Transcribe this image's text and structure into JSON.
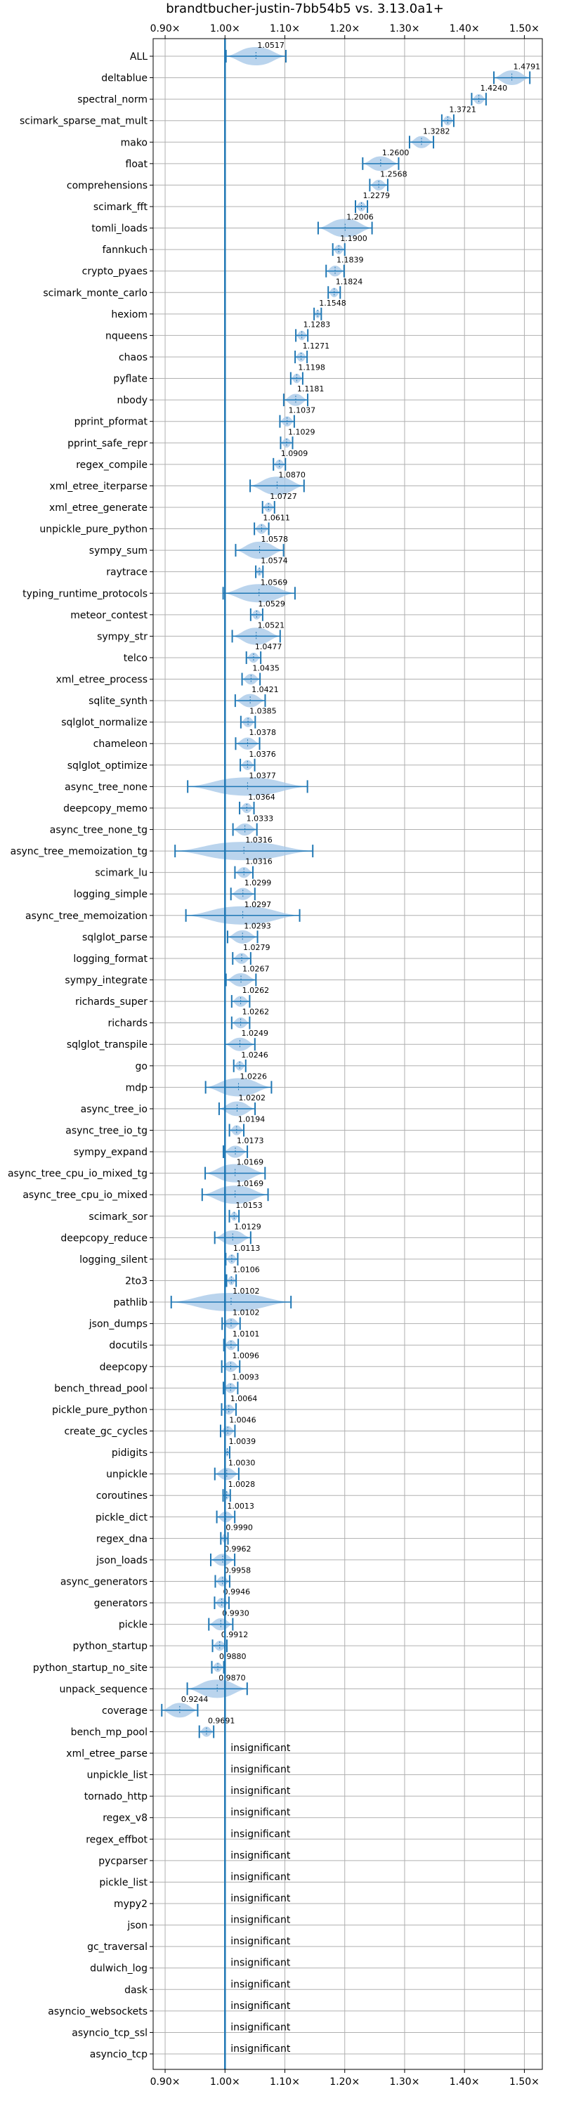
{
  "chart_data": {
    "type": "violin",
    "title": "brandtbucher-justin-7bb54b5 vs. 3.13.0a1+",
    "xlabel": "",
    "ylabel": "",
    "xlim": [
      0.88,
      1.53
    ],
    "xticks": [
      0.9,
      1.0,
      1.1,
      1.2,
      1.3,
      1.4,
      1.5
    ],
    "xtick_labels": [
      "0.90×",
      "1.00×",
      "1.10×",
      "1.20×",
      "1.30×",
      "1.40×",
      "1.50×"
    ],
    "reference_line": 1.0,
    "grid": true,
    "insignificant_text": "insignificant",
    "benchmarks": [
      {
        "name": "ALL",
        "value": 1.0517,
        "label": "1.0517",
        "spread": 0.05
      },
      {
        "name": "deltablue",
        "value": 1.4791,
        "label": "1.4791",
        "spread": 0.03
      },
      {
        "name": "spectral_norm",
        "value": 1.424,
        "label": "1.4240",
        "spread": 0.012
      },
      {
        "name": "scimark_sparse_mat_mult",
        "value": 1.3721,
        "label": "1.3721",
        "spread": 0.01
      },
      {
        "name": "mako",
        "value": 1.3282,
        "label": "1.3282",
        "spread": 0.02
      },
      {
        "name": "float",
        "value": 1.26,
        "label": "1.2600",
        "spread": 0.03
      },
      {
        "name": "comprehensions",
        "value": 1.2568,
        "label": "1.2568",
        "spread": 0.015
      },
      {
        "name": "scimark_fft",
        "value": 1.2279,
        "label": "1.2279",
        "spread": 0.01
      },
      {
        "name": "tomli_loads",
        "value": 1.2006,
        "label": "1.2006",
        "spread": 0.045
      },
      {
        "name": "fannkuch",
        "value": 1.19,
        "label": "1.1900",
        "spread": 0.01
      },
      {
        "name": "crypto_pyaes",
        "value": 1.1839,
        "label": "1.1839",
        "spread": 0.015
      },
      {
        "name": "scimark_monte_carlo",
        "value": 1.1824,
        "label": "1.1824",
        "spread": 0.01
      },
      {
        "name": "hexiom",
        "value": 1.1548,
        "label": "1.1548",
        "spread": 0.006
      },
      {
        "name": "nqueens",
        "value": 1.1283,
        "label": "1.1283",
        "spread": 0.01
      },
      {
        "name": "chaos",
        "value": 1.1271,
        "label": "1.1271",
        "spread": 0.01
      },
      {
        "name": "pyflate",
        "value": 1.1198,
        "label": "1.1198",
        "spread": 0.01
      },
      {
        "name": "nbody",
        "value": 1.1181,
        "label": "1.1181",
        "spread": 0.02
      },
      {
        "name": "pprint_pformat",
        "value": 1.1037,
        "label": "1.1037",
        "spread": 0.012
      },
      {
        "name": "pprint_safe_repr",
        "value": 1.1029,
        "label": "1.1029",
        "spread": 0.01
      },
      {
        "name": "regex_compile",
        "value": 1.0909,
        "label": "1.0909",
        "spread": 0.01
      },
      {
        "name": "xml_etree_iterparse",
        "value": 1.087,
        "label": "1.0870",
        "spread": 0.045
      },
      {
        "name": "xml_etree_generate",
        "value": 1.0727,
        "label": "1.0727",
        "spread": 0.01
      },
      {
        "name": "unpickle_pure_python",
        "value": 1.0611,
        "label": "1.0611",
        "spread": 0.012
      },
      {
        "name": "sympy_sum",
        "value": 1.0578,
        "label": "1.0578",
        "spread": 0.04
      },
      {
        "name": "raytrace",
        "value": 1.0574,
        "label": "1.0574",
        "spread": 0.006
      },
      {
        "name": "typing_runtime_protocols",
        "value": 1.0569,
        "label": "1.0569",
        "spread": 0.06
      },
      {
        "name": "meteor_contest",
        "value": 1.0529,
        "label": "1.0529",
        "spread": 0.01
      },
      {
        "name": "sympy_str",
        "value": 1.0521,
        "label": "1.0521",
        "spread": 0.04
      },
      {
        "name": "telco",
        "value": 1.0477,
        "label": "1.0477",
        "spread": 0.012
      },
      {
        "name": "xml_etree_process",
        "value": 1.0435,
        "label": "1.0435",
        "spread": 0.015
      },
      {
        "name": "sqlite_synth",
        "value": 1.0421,
        "label": "1.0421",
        "spread": 0.025
      },
      {
        "name": "sqlglot_normalize",
        "value": 1.0385,
        "label": "1.0385",
        "spread": 0.012
      },
      {
        "name": "chameleon",
        "value": 1.0378,
        "label": "1.0378",
        "spread": 0.02
      },
      {
        "name": "sqlglot_optimize",
        "value": 1.0376,
        "label": "1.0376",
        "spread": 0.012
      },
      {
        "name": "async_tree_none",
        "value": 1.0377,
        "label": "1.0377",
        "spread": 0.1
      },
      {
        "name": "deepcopy_memo",
        "value": 1.0364,
        "label": "1.0364",
        "spread": 0.012
      },
      {
        "name": "async_tree_none_tg",
        "value": 1.0333,
        "label": "1.0333",
        "spread": 0.02
      },
      {
        "name": "async_tree_memoization_tg",
        "value": 1.0316,
        "label": "1.0316",
        "spread": 0.115
      },
      {
        "name": "scimark_lu",
        "value": 1.0316,
        "label": "1.0316",
        "spread": 0.015
      },
      {
        "name": "logging_simple",
        "value": 1.0299,
        "label": "1.0299",
        "spread": 0.02
      },
      {
        "name": "async_tree_memoization",
        "value": 1.0297,
        "label": "1.0297",
        "spread": 0.095
      },
      {
        "name": "sqlglot_parse",
        "value": 1.0293,
        "label": "1.0293",
        "spread": 0.025
      },
      {
        "name": "logging_format",
        "value": 1.0279,
        "label": "1.0279",
        "spread": 0.015
      },
      {
        "name": "sympy_integrate",
        "value": 1.0267,
        "label": "1.0267",
        "spread": 0.025
      },
      {
        "name": "richards_super",
        "value": 1.0262,
        "label": "1.0262",
        "spread": 0.015
      },
      {
        "name": "richards",
        "value": 1.0262,
        "label": "1.0262",
        "spread": 0.015
      },
      {
        "name": "sqlglot_transpile",
        "value": 1.0249,
        "label": "1.0249",
        "spread": 0.025
      },
      {
        "name": "go",
        "value": 1.0246,
        "label": "1.0246",
        "spread": 0.01
      },
      {
        "name": "mdp",
        "value": 1.0226,
        "label": "1.0226",
        "spread": 0.055
      },
      {
        "name": "async_tree_io",
        "value": 1.0202,
        "label": "1.0202",
        "spread": 0.03
      },
      {
        "name": "async_tree_io_tg",
        "value": 1.0194,
        "label": "1.0194",
        "spread": 0.012
      },
      {
        "name": "sympy_expand",
        "value": 1.0173,
        "label": "1.0173",
        "spread": 0.02
      },
      {
        "name": "async_tree_cpu_io_mixed_tg",
        "value": 1.0169,
        "label": "1.0169",
        "spread": 0.05
      },
      {
        "name": "async_tree_cpu_io_mixed",
        "value": 1.0169,
        "label": "1.0169",
        "spread": 0.055
      },
      {
        "name": "scimark_sor",
        "value": 1.0153,
        "label": "1.0153",
        "spread": 0.008
      },
      {
        "name": "deepcopy_reduce",
        "value": 1.0129,
        "label": "1.0129",
        "spread": 0.03
      },
      {
        "name": "logging_silent",
        "value": 1.0113,
        "label": "1.0113",
        "spread": 0.01
      },
      {
        "name": "2to3",
        "value": 1.0106,
        "label": "1.0106",
        "spread": 0.008
      },
      {
        "name": "pathlib",
        "value": 1.0102,
        "label": "1.0102",
        "spread": 0.1
      },
      {
        "name": "json_dumps",
        "value": 1.0102,
        "label": "1.0102",
        "spread": 0.015
      },
      {
        "name": "docutils",
        "value": 1.0101,
        "label": "1.0101",
        "spread": 0.012
      },
      {
        "name": "deepcopy",
        "value": 1.0096,
        "label": "1.0096",
        "spread": 0.015
      },
      {
        "name": "bench_thread_pool",
        "value": 1.0093,
        "label": "1.0093",
        "spread": 0.012
      },
      {
        "name": "pickle_pure_python",
        "value": 1.0064,
        "label": "1.0064",
        "spread": 0.012
      },
      {
        "name": "create_gc_cycles",
        "value": 1.0046,
        "label": "1.0046",
        "spread": 0.012
      },
      {
        "name": "pidigits",
        "value": 1.0039,
        "label": "1.0039",
        "spread": 0.004
      },
      {
        "name": "unpickle",
        "value": 1.003,
        "label": "1.0030",
        "spread": 0.02
      },
      {
        "name": "coroutines",
        "value": 1.0028,
        "label": "1.0028",
        "spread": 0.006
      },
      {
        "name": "pickle_dict",
        "value": 1.0013,
        "label": "1.0013",
        "spread": 0.015
      },
      {
        "name": "regex_dna",
        "value": 0.999,
        "label": "0.9990",
        "spread": 0.006
      },
      {
        "name": "json_loads",
        "value": 0.9962,
        "label": "0.9962",
        "spread": 0.02
      },
      {
        "name": "async_generators",
        "value": 0.9958,
        "label": "0.9958",
        "spread": 0.012
      },
      {
        "name": "generators",
        "value": 0.9946,
        "label": "0.9946",
        "spread": 0.012
      },
      {
        "name": "pickle",
        "value": 0.993,
        "label": "0.9930",
        "spread": 0.02
      },
      {
        "name": "python_startup",
        "value": 0.9912,
        "label": "0.9912",
        "spread": 0.012
      },
      {
        "name": "python_startup_no_site",
        "value": 0.988,
        "label": "0.9880",
        "spread": 0.01
      },
      {
        "name": "unpack_sequence",
        "value": 0.987,
        "label": "0.9870",
        "spread": 0.05
      },
      {
        "name": "coverage",
        "value": 0.9244,
        "label": "0.9244",
        "spread": 0.03
      },
      {
        "name": "bench_mp_pool",
        "value": 0.9691,
        "label": "0.9691",
        "spread": 0.012
      },
      {
        "name": "xml_etree_parse",
        "value": null,
        "label": "insignificant"
      },
      {
        "name": "unpickle_list",
        "value": null,
        "label": "insignificant"
      },
      {
        "name": "tornado_http",
        "value": null,
        "label": "insignificant"
      },
      {
        "name": "regex_v8",
        "value": null,
        "label": "insignificant"
      },
      {
        "name": "regex_effbot",
        "value": null,
        "label": "insignificant"
      },
      {
        "name": "pycparser",
        "value": null,
        "label": "insignificant"
      },
      {
        "name": "pickle_list",
        "value": null,
        "label": "insignificant"
      },
      {
        "name": "mypy2",
        "value": null,
        "label": "insignificant"
      },
      {
        "name": "json",
        "value": null,
        "label": "insignificant"
      },
      {
        "name": "gc_traversal",
        "value": null,
        "label": "insignificant"
      },
      {
        "name": "dulwich_log",
        "value": null,
        "label": "insignificant"
      },
      {
        "name": "dask",
        "value": null,
        "label": "insignificant"
      },
      {
        "name": "asyncio_websockets",
        "value": null,
        "label": "insignificant"
      },
      {
        "name": "asyncio_tcp_ssl",
        "value": null,
        "label": "insignificant"
      },
      {
        "name": "asyncio_tcp",
        "value": null,
        "label": "insignificant"
      }
    ],
    "colors": {
      "line": "#1f77b4",
      "fill": "#a9c9e8",
      "grid": "#b0b0b0",
      "axis": "#000000"
    }
  }
}
